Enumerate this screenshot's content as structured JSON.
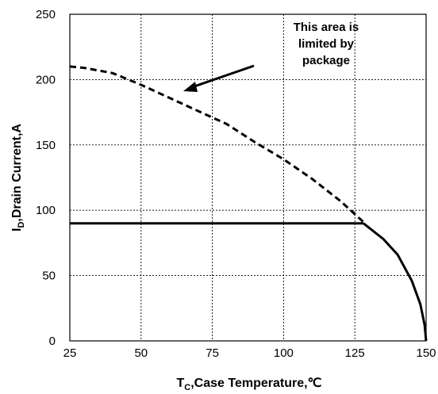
{
  "chart_data": {
    "type": "line",
    "xlabel_main": "T",
    "xlabel_sub": "C",
    "xlabel_rest": ",Case Temperature,℃",
    "ylabel_main": "I",
    "ylabel_sub": "D",
    "ylabel_rest": ",Drain Current,A",
    "xlim": [
      25,
      150
    ],
    "ylim": [
      0,
      250
    ],
    "xticks": [
      "25",
      "50",
      "75",
      "100",
      "125",
      "150"
    ],
    "yticks": [
      "0",
      "50",
      "100",
      "150",
      "200",
      "250"
    ],
    "grid": true,
    "series": [
      {
        "style": "dashed",
        "x": [
          25,
          30,
          40,
          50,
          60,
          70,
          80,
          90,
          100,
          110,
          120,
          128
        ],
        "y": [
          210,
          209,
          205,
          196,
          186,
          176,
          166,
          152,
          139,
          124,
          107,
          91
        ]
      },
      {
        "style": "solid",
        "x": [
          25,
          128
        ],
        "y": [
          90,
          90
        ]
      },
      {
        "style": "solid",
        "x": [
          128,
          135,
          140,
          145,
          148,
          149.5,
          150
        ],
        "y": [
          90,
          78,
          66,
          46,
          28,
          12,
          0
        ]
      }
    ],
    "annotation": {
      "lines": [
        "This area is",
        "limited by",
        "package"
      ]
    }
  }
}
